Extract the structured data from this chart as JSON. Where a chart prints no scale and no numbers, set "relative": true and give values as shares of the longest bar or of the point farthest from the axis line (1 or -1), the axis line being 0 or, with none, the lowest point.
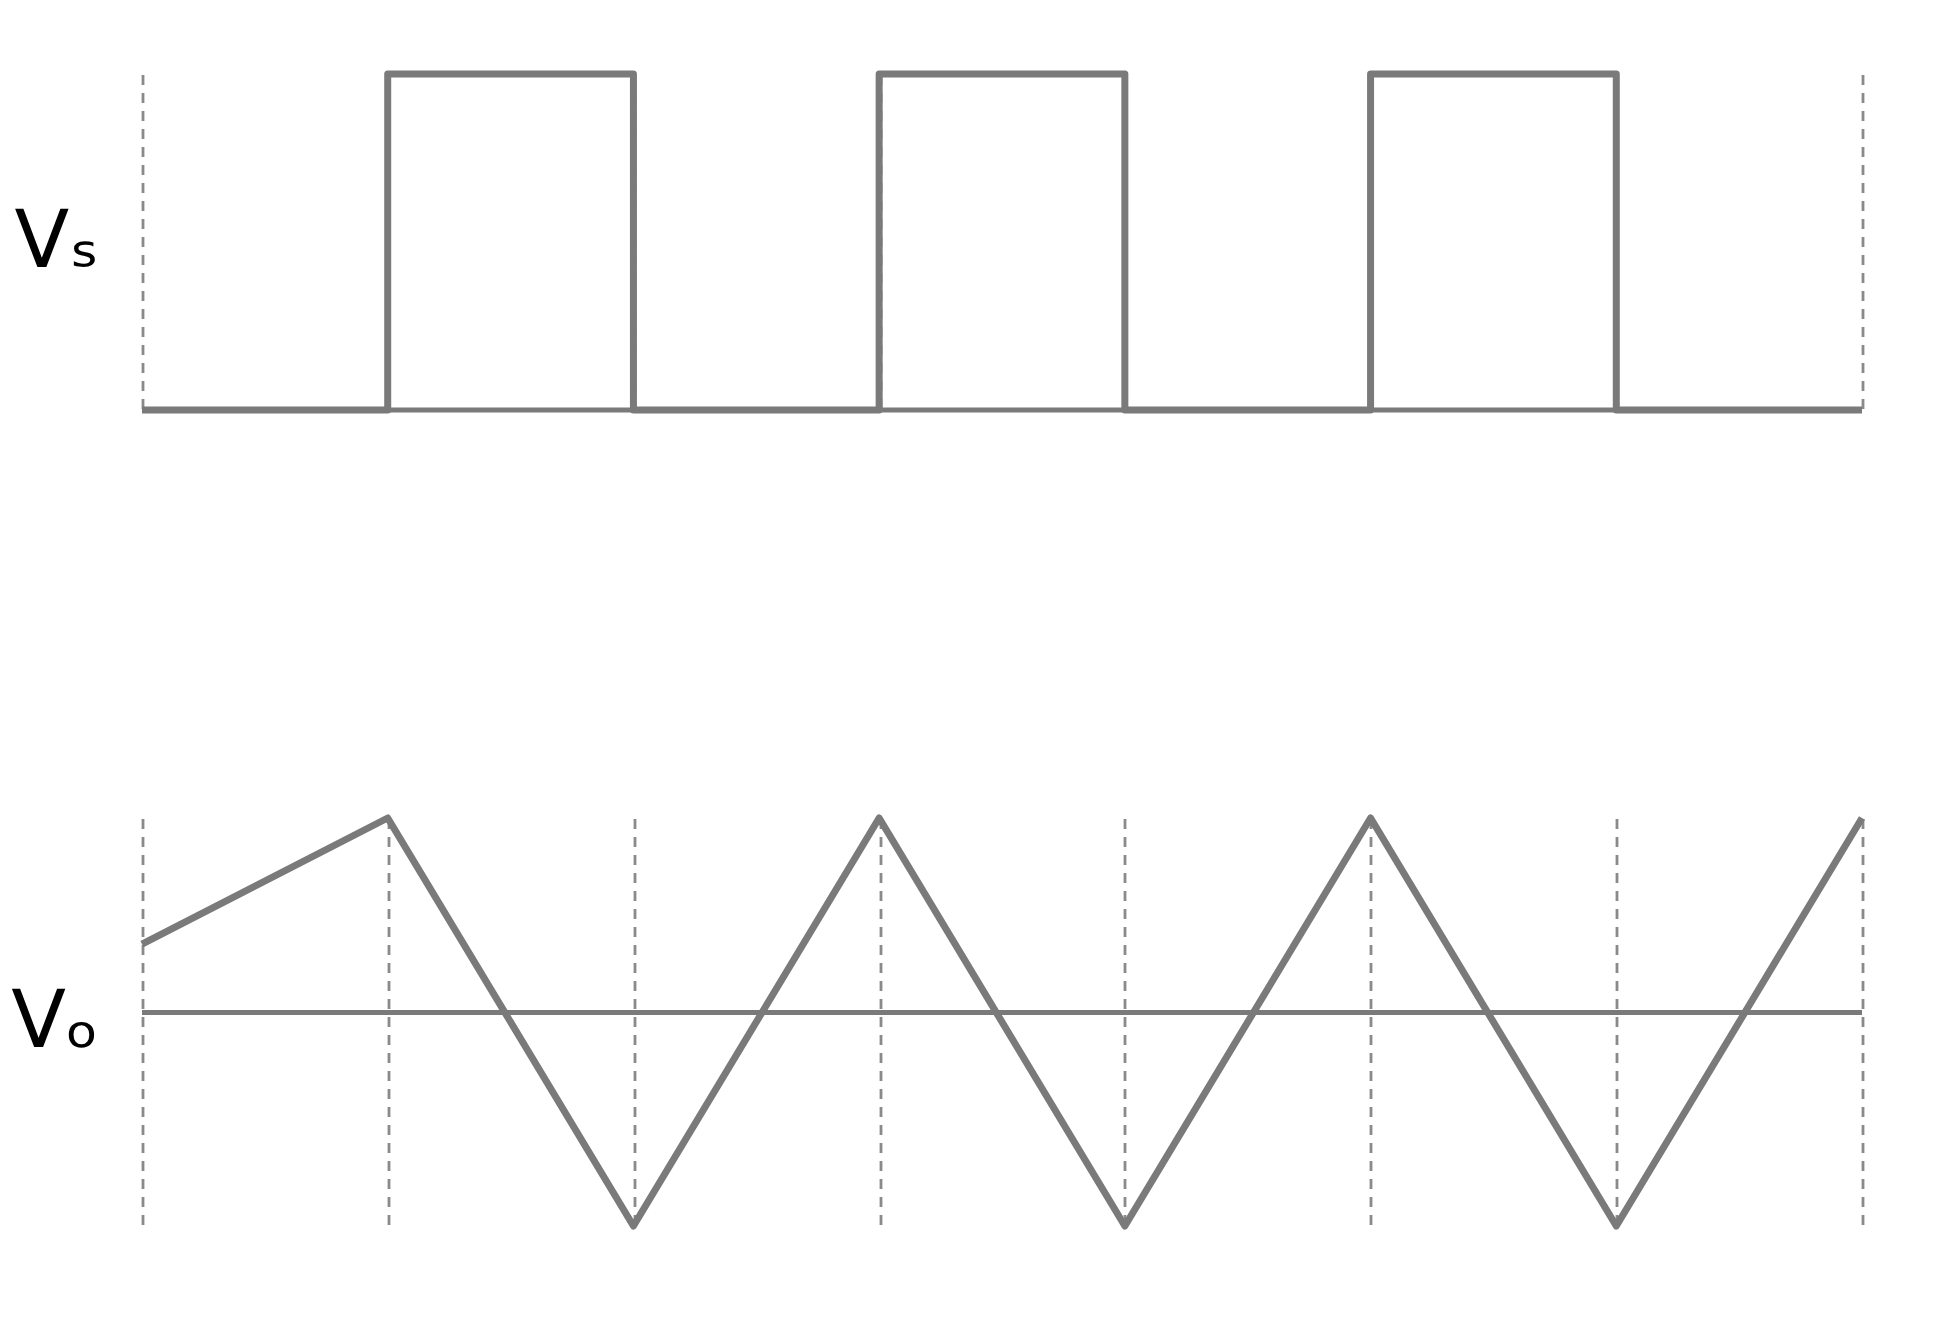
{
  "chart_data": [
    {
      "type": "step",
      "ylabel": "Vₛ",
      "relative": true,
      "categories": [
        null,
        null,
        null,
        null,
        null,
        null,
        null,
        null
      ],
      "grid": "x",
      "tick_labels": false,
      "line_style": "solid",
      "series": [
        {
          "color": "#7a7a7a",
          "values": [
            0,
            0,
            1,
            0,
            1,
            0,
            1,
            0
          ]
        }
      ]
    },
    {
      "type": "line",
      "ylabel": "Vₒ",
      "relative": true,
      "categories": [
        null,
        null,
        null,
        null,
        null,
        null,
        null,
        null
      ],
      "grid": "x",
      "tick_labels": false,
      "line_style": "solid",
      "series": [
        {
          "color": "#7a7a7a",
          "values": [
            0.32,
            0.91,
            -1,
            0.91,
            -1,
            0.91,
            -1,
            0.91
          ]
        }
      ]
    }
  ]
}
